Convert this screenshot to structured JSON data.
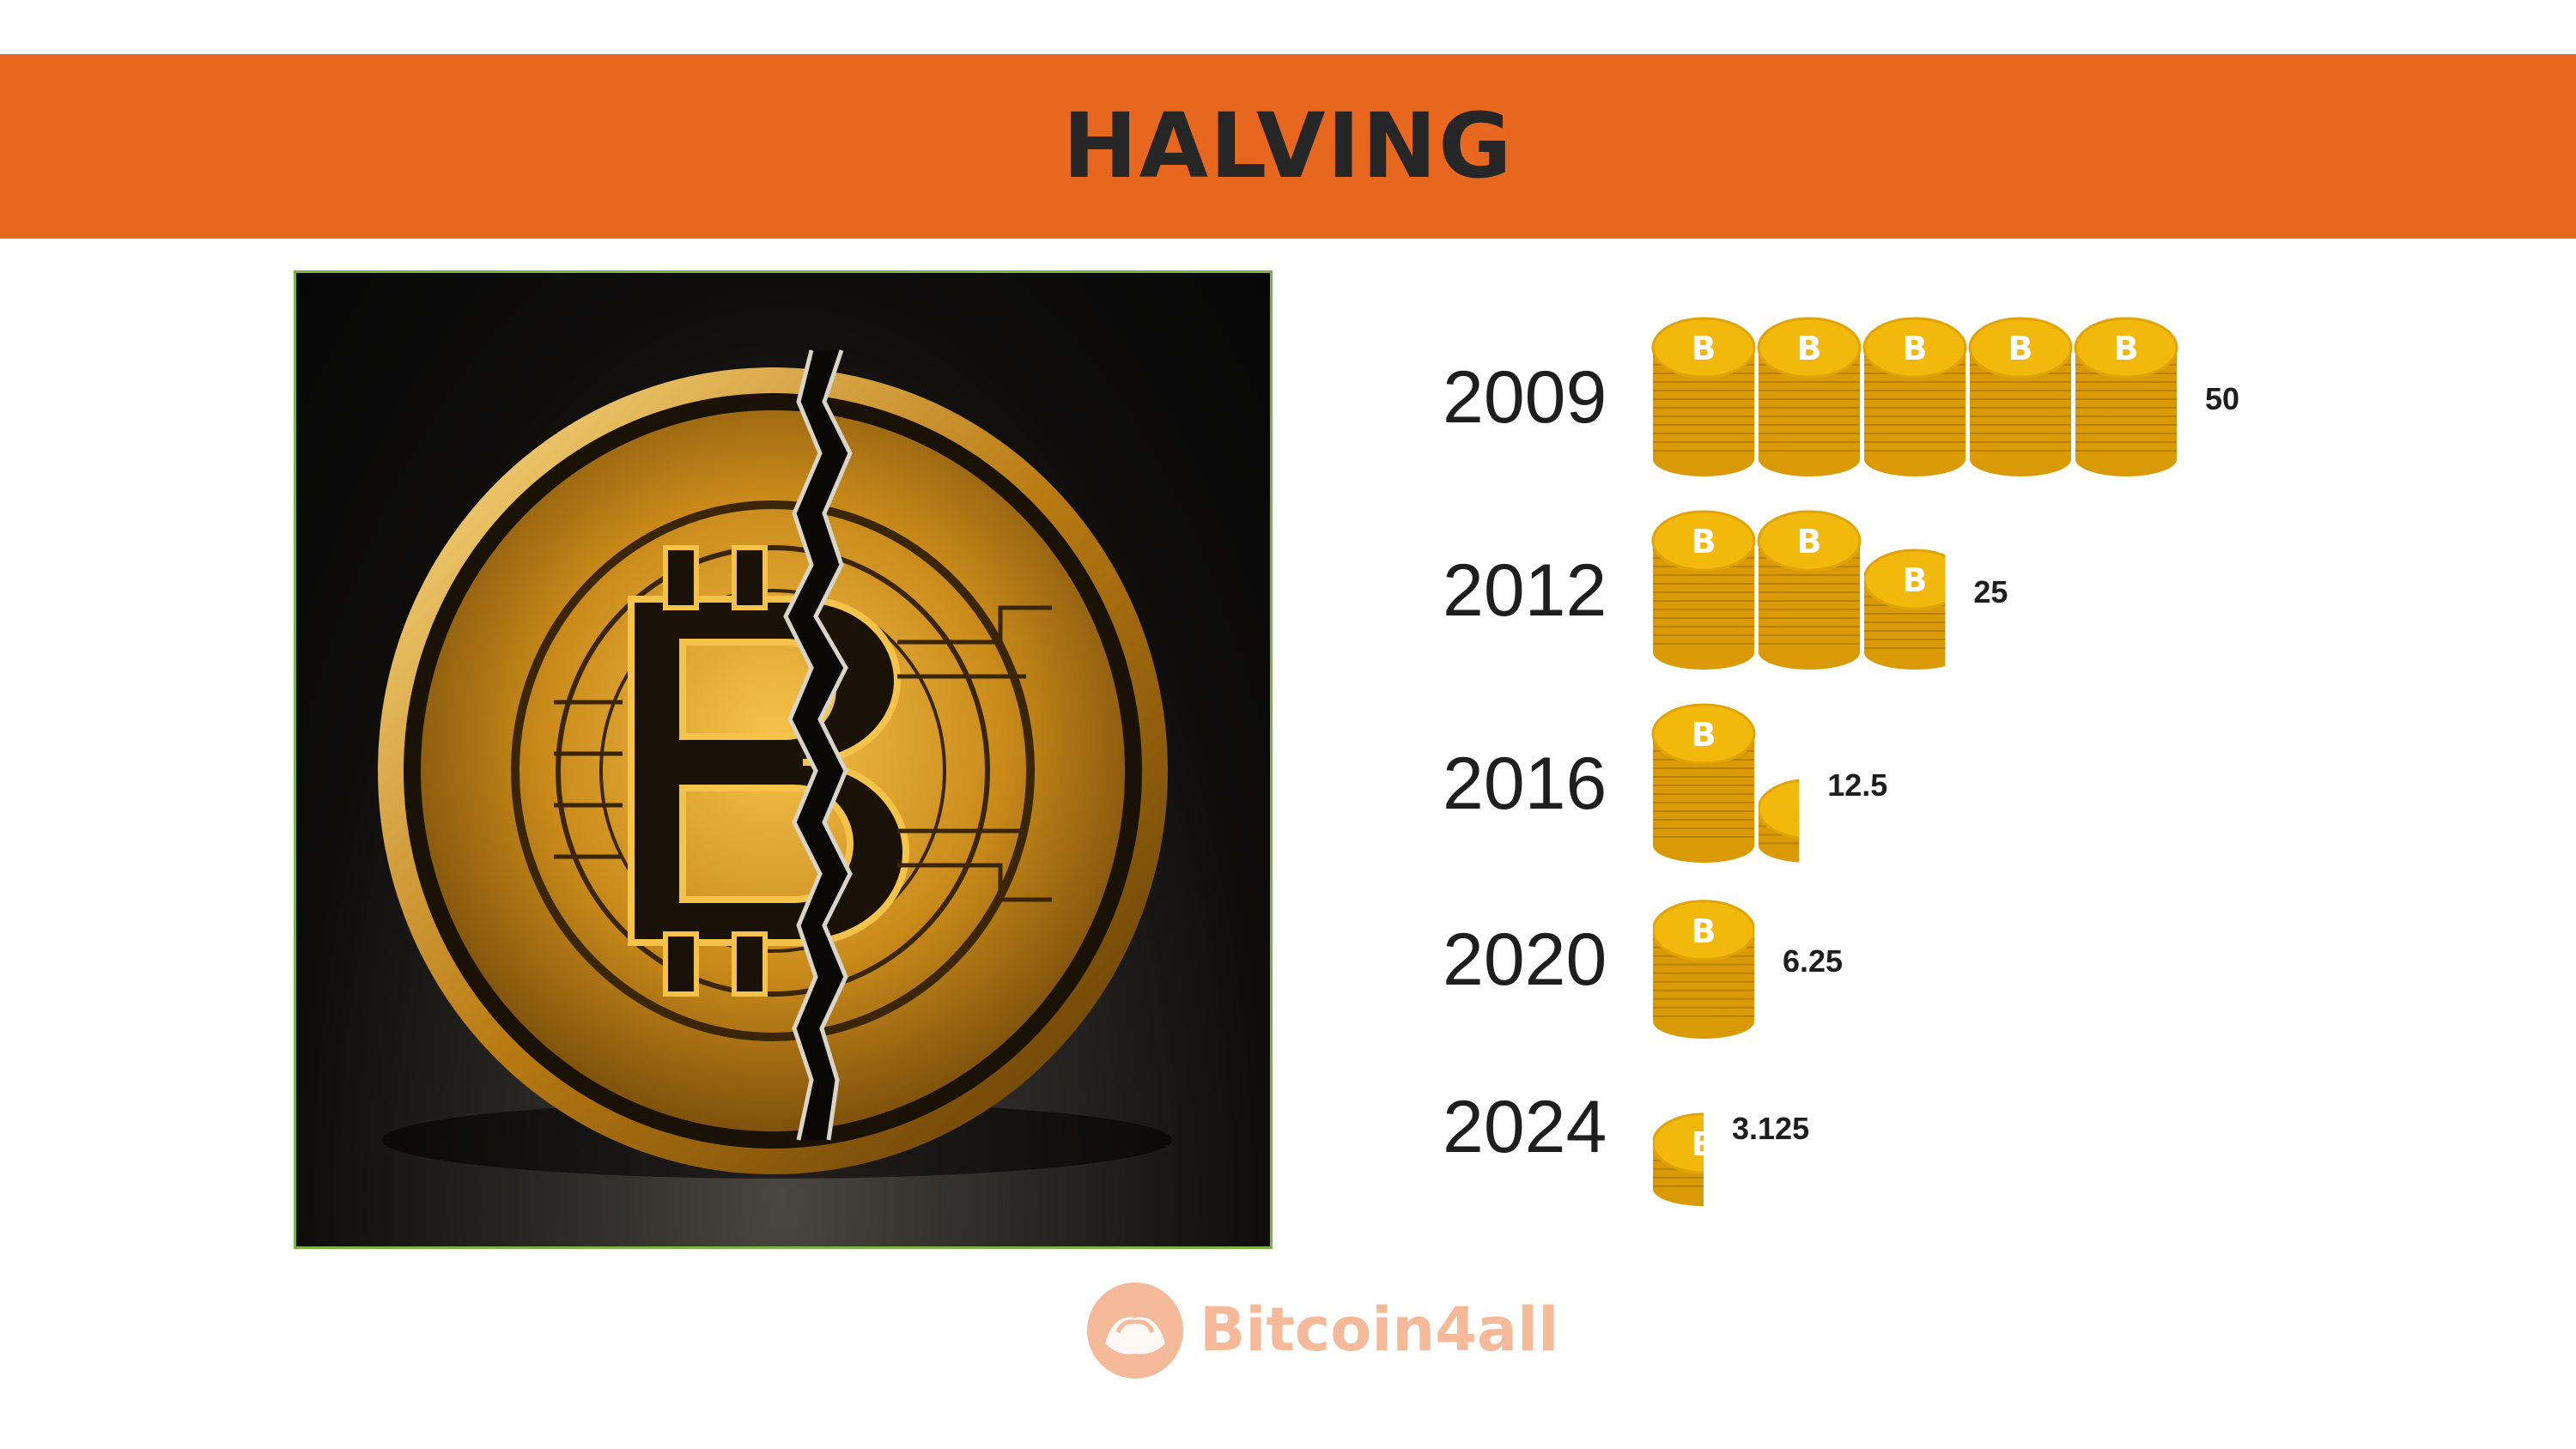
{
  "chart_data": {
    "type": "bar",
    "title": "HALVING",
    "categories": [
      "2009",
      "2012",
      "2016",
      "2020",
      "2024"
    ],
    "values": [
      50,
      25,
      12.5,
      6.25,
      3.125
    ],
    "value_labels": [
      "50",
      "25",
      "12.5",
      "6.25",
      "3.125"
    ],
    "unit_per_coin_stack": 10,
    "orientation": "horizontal",
    "mark": "coin-stack-icon"
  },
  "branding": {
    "logo_text": "Bitcoin4all"
  },
  "colors": {
    "banner": "#e8671f",
    "coin": "#f2b90c",
    "coin_dark": "#d99a05",
    "photo_border": "#7cb342"
  }
}
